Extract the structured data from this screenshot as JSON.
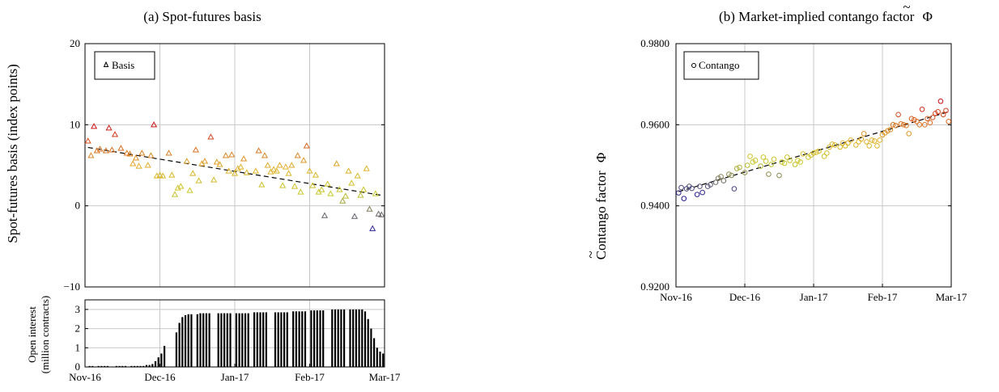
{
  "chart_data": [
    {
      "type": "scatter",
      "title": "(a)  Spot-futures basis",
      "ylabel": "Spot-futures basis (index points)",
      "xlabel": "",
      "x_ticks": [
        "Nov-16",
        "Dec-16",
        "Jan-17",
        "Feb-17",
        "Mar-17"
      ],
      "ylim": [
        -10,
        20
      ],
      "y_ticks": [
        "20",
        "10",
        "0",
        "−10"
      ],
      "grid": true,
      "legend": {
        "position": "top-left",
        "entries": [
          "Basis"
        ]
      },
      "trend": {
        "start": 7.2,
        "end": 1.3
      },
      "series": [
        {
          "marker": "triangle",
          "points": [
            [
              1,
              8.0
            ],
            [
              2,
              6.2
            ],
            [
              3,
              9.8
            ],
            [
              4,
              6.8
            ],
            [
              5,
              7.0
            ],
            [
              7,
              6.8
            ],
            [
              8,
              9.6
            ],
            [
              9,
              6.9
            ],
            [
              10,
              8.8
            ],
            [
              12,
              7.1
            ],
            [
              14,
              6.5
            ],
            [
              15,
              6.4
            ],
            [
              16,
              5.2
            ],
            [
              17,
              5.9
            ],
            [
              18,
              4.9
            ],
            [
              19,
              6.5
            ],
            [
              21,
              5.0
            ],
            [
              22,
              6.2
            ],
            [
              23,
              10.0
            ],
            [
              24,
              3.7
            ],
            [
              25,
              3.8
            ],
            [
              26,
              3.7
            ],
            [
              28,
              6.5
            ],
            [
              29,
              3.8
            ],
            [
              30,
              1.4
            ],
            [
              31,
              2.2
            ],
            [
              32,
              2.4
            ],
            [
              34,
              5.5
            ],
            [
              35,
              1.9
            ],
            [
              36,
              4.0
            ],
            [
              37,
              6.9
            ],
            [
              38,
              3.1
            ],
            [
              39,
              5.2
            ],
            [
              40,
              5.5
            ],
            [
              42,
              8.5
            ],
            [
              43,
              3.2
            ],
            [
              44,
              5.4
            ],
            [
              45,
              5.1
            ],
            [
              47,
              6.2
            ],
            [
              48,
              4.3
            ],
            [
              49,
              6.3
            ],
            [
              50,
              4.0
            ],
            [
              51,
              4.6
            ],
            [
              52,
              4.8
            ],
            [
              53,
              5.8
            ],
            [
              54,
              4.1
            ],
            [
              57,
              4.3
            ],
            [
              58,
              6.8
            ],
            [
              59,
              2.6
            ],
            [
              60,
              6.2
            ],
            [
              61,
              5.0
            ],
            [
              62,
              4.2
            ],
            [
              63,
              4.5
            ],
            [
              64,
              4.3
            ],
            [
              65,
              5.0
            ],
            [
              66,
              2.5
            ],
            [
              67,
              4.8
            ],
            [
              68,
              4.0
            ],
            [
              69,
              5.0
            ],
            [
              70,
              2.4
            ],
            [
              71,
              6.2
            ],
            [
              72,
              1.7
            ],
            [
              73,
              5.6
            ],
            [
              74,
              7.4
            ],
            [
              75,
              4.3
            ],
            [
              76,
              2.5
            ],
            [
              77,
              3.8
            ],
            [
              78,
              1.7
            ],
            [
              79,
              2.0
            ],
            [
              80,
              -1.2
            ],
            [
              81,
              2.7
            ],
            [
              82,
              1.5
            ],
            [
              84,
              5.2
            ],
            [
              85,
              2.0
            ],
            [
              86,
              0.6
            ],
            [
              87,
              1.2
            ],
            [
              88,
              4.3
            ],
            [
              89,
              2.8
            ],
            [
              90,
              -1.3
            ],
            [
              91,
              3.7
            ],
            [
              92,
              1.3
            ],
            [
              93,
              2.0
            ],
            [
              94,
              4.6
            ],
            [
              95,
              -0.4
            ],
            [
              96,
              -2.8
            ],
            [
              97,
              1.5
            ],
            [
              98,
              -1.0
            ],
            [
              99,
              -1.1
            ]
          ]
        }
      ]
    },
    {
      "type": "bar",
      "ylabel": "Open interest (million contracts)",
      "ylabel_lines": [
        "Open interest",
        "(million contracts)"
      ],
      "ylim": [
        0,
        3.5
      ],
      "y_ticks": [
        "3",
        "2",
        "1",
        "0"
      ],
      "x_ticks": [
        "Nov-16",
        "Dec-16",
        "Jan-17",
        "Feb-17",
        "Mar-17"
      ],
      "grid": true,
      "values": [
        0,
        0.05,
        0.05,
        0,
        0.05,
        0.05,
        0.05,
        0.05,
        0,
        0,
        0.05,
        0.05,
        0.05,
        0.05,
        0,
        0.05,
        0.05,
        0.05,
        0.05,
        0.05,
        0.1,
        0.1,
        0.15,
        0.3,
        0.5,
        0.7,
        1.1,
        0,
        0,
        0,
        1.8,
        2.3,
        2.6,
        2.7,
        2.75,
        2.75,
        0,
        2.75,
        2.8,
        2.8,
        2.8,
        2.8,
        0,
        0,
        2.8,
        2.8,
        2.8,
        2.8,
        2.8,
        0,
        2.8,
        2.8,
        2.8,
        2.8,
        2.8,
        0,
        2.85,
        2.85,
        2.85,
        2.85,
        2.85,
        0,
        0,
        2.85,
        2.85,
        2.85,
        2.85,
        2.85,
        0,
        2.9,
        2.9,
        2.9,
        2.9,
        2.9,
        0,
        2.95,
        2.95,
        2.95,
        2.95,
        2.95,
        0,
        0,
        3.0,
        3.0,
        3.0,
        3.0,
        3.0,
        0,
        3.0,
        3.0,
        3.0,
        3.0,
        3.0,
        2.9,
        2.5,
        2.0,
        1.5,
        1.0,
        0.8,
        0.7
      ]
    },
    {
      "type": "scatter",
      "title": "(b)  Market-implied contango factor",
      "title_symbol": "Φ",
      "ylabel": "Contango factor",
      "ylabel_symbol": "Φ",
      "xlabel": "",
      "x_ticks": [
        "Nov-16",
        "Dec-16",
        "Jan-17",
        "Feb-17",
        "Mar-17"
      ],
      "ylim": [
        0.92,
        0.98
      ],
      "y_ticks": [
        "0.9800",
        "0.9600",
        "0.9400",
        "0.9200"
      ],
      "grid": true,
      "legend": {
        "position": "top-left",
        "entries": [
          "Contango"
        ]
      },
      "trend": {
        "start": 0.9435,
        "end": 0.9632
      },
      "series": [
        {
          "marker": "circle",
          "points": [
            [
              1,
              0.9432
            ],
            [
              2,
              0.9445
            ],
            [
              3,
              0.9418
            ],
            [
              4,
              0.9442
            ],
            [
              5,
              0.9448
            ],
            [
              6,
              0.9443
            ],
            [
              8,
              0.9428
            ],
            [
              9,
              0.9448
            ],
            [
              10,
              0.9433
            ],
            [
              12,
              0.9448
            ],
            [
              13,
              0.9452
            ],
            [
              15,
              0.9458
            ],
            [
              16,
              0.9468
            ],
            [
              17,
              0.9472
            ],
            [
              18,
              0.9462
            ],
            [
              20,
              0.9478
            ],
            [
              21,
              0.9475
            ],
            [
              22,
              0.9442
            ],
            [
              23,
              0.9492
            ],
            [
              24,
              0.9495
            ],
            [
              26,
              0.9482
            ],
            [
              27,
              0.95
            ],
            [
              28,
              0.9522
            ],
            [
              29,
              0.9508
            ],
            [
              30,
              0.9512
            ],
            [
              32,
              0.9498
            ],
            [
              33,
              0.952
            ],
            [
              34,
              0.951
            ],
            [
              35,
              0.9478
            ],
            [
              36,
              0.9502
            ],
            [
              37,
              0.9515
            ],
            [
              39,
              0.9475
            ],
            [
              40,
              0.9508
            ],
            [
              41,
              0.9505
            ],
            [
              42,
              0.952
            ],
            [
              43,
              0.9512
            ],
            [
              45,
              0.9502
            ],
            [
              46,
              0.9512
            ],
            [
              47,
              0.9508
            ],
            [
              48,
              0.9528
            ],
            [
              50,
              0.952
            ],
            [
              51,
              0.9525
            ],
            [
              52,
              0.953
            ],
            [
              53,
              0.9532
            ],
            [
              54,
              0.9535
            ],
            [
              56,
              0.9522
            ],
            [
              57,
              0.953
            ],
            [
              58,
              0.9545
            ],
            [
              59,
              0.9552
            ],
            [
              60,
              0.955
            ],
            [
              62,
              0.9545
            ],
            [
              63,
              0.9555
            ],
            [
              64,
              0.9548
            ],
            [
              65,
              0.9555
            ],
            [
              66,
              0.9562
            ],
            [
              68,
              0.955
            ],
            [
              69,
              0.9558
            ],
            [
              70,
              0.9565
            ],
            [
              71,
              0.9578
            ],
            [
              72,
              0.9558
            ],
            [
              73,
              0.9548
            ],
            [
              74,
              0.9562
            ],
            [
              75,
              0.956
            ],
            [
              76,
              0.9548
            ],
            [
              77,
              0.9562
            ],
            [
              78,
              0.9575
            ],
            [
              79,
              0.958
            ],
            [
              80,
              0.9585
            ],
            [
              81,
              0.9588
            ],
            [
              82,
              0.96
            ],
            [
              83,
              0.9598
            ],
            [
              84,
              0.9625
            ],
            [
              85,
              0.9602
            ],
            [
              86,
              0.96
            ],
            [
              87,
              0.9598
            ],
            [
              88,
              0.9578
            ],
            [
              89,
              0.9615
            ],
            [
              90,
              0.9612
            ],
            [
              91,
              0.9608
            ],
            [
              92,
              0.96
            ],
            [
              93,
              0.9638
            ],
            [
              94,
              0.96
            ],
            [
              95,
              0.9615
            ],
            [
              96,
              0.9605
            ],
            [
              97,
              0.9618
            ],
            [
              98,
              0.9628
            ],
            [
              99,
              0.9632
            ],
            [
              100,
              0.9658
            ],
            [
              101,
              0.9625
            ],
            [
              102,
              0.9635
            ],
            [
              103,
              0.9608
            ]
          ]
        }
      ]
    }
  ]
}
